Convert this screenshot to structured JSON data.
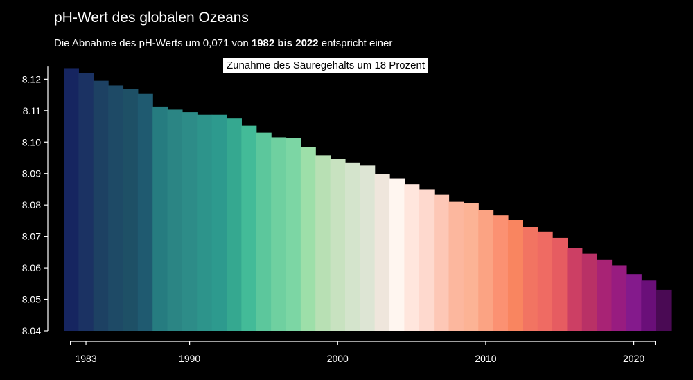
{
  "chart_data": {
    "type": "bar",
    "title": "pH-Wert des globalen Ozeans",
    "subtitle_parts": {
      "part1": "Die Abnahme des pH-Werts um 0,071 von ",
      "bold": "1982 bis 2022",
      "part2": " entspricht einer"
    },
    "highlight": "Zunahme des Säuregehalts um 18 Prozent",
    "xlabel": "",
    "ylabel": "",
    "ylim": [
      8.04,
      8.124
    ],
    "yticks": [
      8.04,
      8.05,
      8.06,
      8.07,
      8.08,
      8.09,
      8.1,
      8.11,
      8.12
    ],
    "ytick_labels": [
      "8.04",
      "8.05",
      "8.06",
      "8.07",
      "8.08",
      "8.09",
      "8.10",
      "8.11",
      "8.12"
    ],
    "xticks": [
      1983,
      1990,
      2000,
      2010,
      2020
    ],
    "xtick_labels": [
      "1983",
      "1990",
      "2000",
      "2010",
      "2020"
    ],
    "grid": false,
    "categories": [
      1982,
      1983,
      1984,
      1985,
      1986,
      1987,
      1988,
      1989,
      1990,
      1991,
      1992,
      1993,
      1994,
      1995,
      1996,
      1997,
      1998,
      1999,
      2000,
      2001,
      2002,
      2003,
      2004,
      2005,
      2006,
      2007,
      2008,
      2009,
      2010,
      2011,
      2012,
      2013,
      2014,
      2015,
      2016,
      2017,
      2018,
      2019,
      2020,
      2021,
      2022
    ],
    "values": [
      8.1235,
      8.122,
      8.1195,
      8.118,
      8.1168,
      8.1153,
      8.1113,
      8.1103,
      8.1095,
      8.1087,
      8.1087,
      8.1075,
      8.1052,
      8.103,
      8.1015,
      8.1013,
      8.0983,
      8.0958,
      8.0947,
      8.0935,
      8.0925,
      8.0898,
      8.0885,
      8.0866,
      8.085,
      8.0832,
      8.081,
      8.0807,
      8.0783,
      8.0767,
      8.0752,
      8.073,
      8.0715,
      8.0695,
      8.0663,
      8.0645,
      8.0627,
      8.0608,
      8.058,
      8.056,
      8.053
    ],
    "colors": [
      "#162560",
      "#1b3263",
      "#1d4163",
      "#1e4a66",
      "#1e5066",
      "#1f5a70",
      "#267c80",
      "#2b8584",
      "#2d8c88",
      "#2d948b",
      "#2d9a8e",
      "#35a890",
      "#43bb98",
      "#5cc79c",
      "#6fd0a0",
      "#7cd6a4",
      "#9ddfa9",
      "#b8e0b4",
      "#c8e2c0",
      "#d4e4cc",
      "#dde5d4",
      "#efe6dc",
      "#fff6f0",
      "#ffe6dd",
      "#fed9ce",
      "#fdc7b6",
      "#fcb79e",
      "#fcb395",
      "#fba383",
      "#fb9172",
      "#f98560",
      "#f27462",
      "#ef6b63",
      "#e65c61",
      "#cc3f64",
      "#b93166",
      "#a82375",
      "#981c80",
      "#841a8c",
      "#6a0f79",
      "#4a0a54"
    ]
  }
}
